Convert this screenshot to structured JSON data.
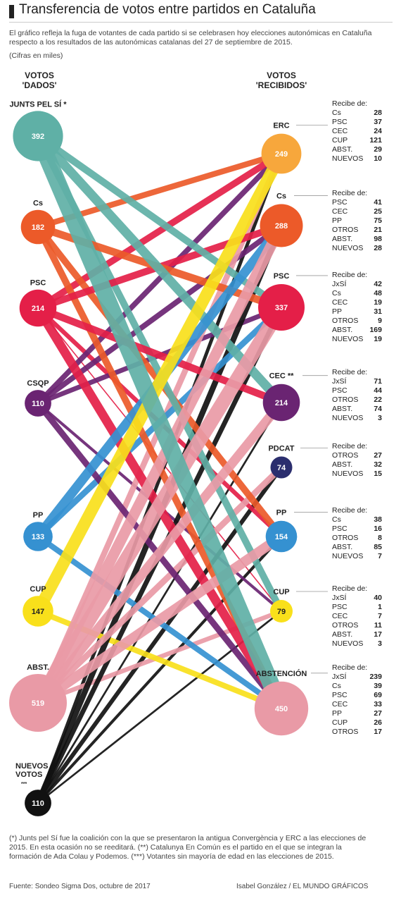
{
  "title": "Transferencia de votos entre partidos en Cataluña",
  "description": "El gráfico refleja la fuga de votantes de cada partido si se celebrasen hoy elecciones autonómicas en Cataluña respecto a los resultados de las autonómicas catalanas del 27 de septiembre de 2015.",
  "units": "(Cifras en miles)",
  "left_header": "VOTOS\n'DADOS'",
  "right_header": "VOTOS\n'RECIBIDOS'",
  "receive_label": "Recibe de:",
  "colors": {
    "jxsi": "#5fb0a6",
    "cs": "#ec5a29",
    "psc": "#e41f48",
    "csqp": "#6a2472",
    "pp": "#3591d1",
    "cup": "#f9e01b",
    "abst": "#e99aa6",
    "nuevos": "#111111",
    "erc": "#f7a73c",
    "pdcat": "#2b2e6e"
  },
  "chart_data": {
    "type": "flow",
    "units": "miles de votos",
    "sources": [
      {
        "name": "JUNTS PEL SÍ *",
        "value": 392,
        "color": "#5fb0a6"
      },
      {
        "name": "Cs",
        "value": 182,
        "color": "#ec5a29"
      },
      {
        "name": "PSC",
        "value": 214,
        "color": "#e41f48"
      },
      {
        "name": "CSQP",
        "value": 110,
        "color": "#6a2472"
      },
      {
        "name": "PP",
        "value": 133,
        "color": "#3591d1"
      },
      {
        "name": "CUP",
        "value": 147,
        "color": "#f9e01b"
      },
      {
        "name": "ABST.",
        "value": 519,
        "color": "#e99aa6"
      },
      {
        "name": "NUEVOS VOTOS ***",
        "value": 110,
        "color": "#111111"
      }
    ],
    "targets": [
      {
        "name": "ERC",
        "value": 249,
        "color": "#f7a73c",
        "receives": [
          [
            "Cs",
            28
          ],
          [
            "PSC",
            37
          ],
          [
            "CEC",
            24
          ],
          [
            "CUP",
            121
          ],
          [
            "ABST.",
            29
          ],
          [
            "NUEVOS",
            10
          ]
        ]
      },
      {
        "name": "Cs",
        "value": 288,
        "color": "#ec5a29",
        "receives": [
          [
            "PSC",
            41
          ],
          [
            "CEC",
            25
          ],
          [
            "PP",
            75
          ],
          [
            "OTROS",
            21
          ],
          [
            "ABST.",
            98
          ],
          [
            "NUEVOS",
            28
          ]
        ]
      },
      {
        "name": "PSC",
        "value": 337,
        "color": "#e41f48",
        "receives": [
          [
            "JxSÍ",
            42
          ],
          [
            "Cs",
            48
          ],
          [
            "CEC",
            19
          ],
          [
            "PP",
            31
          ],
          [
            "OTROS",
            9
          ],
          [
            "ABST.",
            169
          ],
          [
            "NUEVOS",
            19
          ]
        ]
      },
      {
        "name": "CEC **",
        "value": 214,
        "color": "#6a2472",
        "receives": [
          [
            "JxSÍ",
            71
          ],
          [
            "PSC",
            44
          ],
          [
            "OTROS",
            22
          ],
          [
            "ABST.",
            74
          ],
          [
            "NUEVOS",
            3
          ]
        ]
      },
      {
        "name": "PDCAT",
        "value": 74,
        "color": "#2b2e6e",
        "receives": [
          [
            "OTROS",
            27
          ],
          [
            "ABST.",
            32
          ],
          [
            "NUEVOS",
            15
          ]
        ]
      },
      {
        "name": "PP",
        "value": 154,
        "color": "#3591d1",
        "receives": [
          [
            "Cs",
            38
          ],
          [
            "PSC",
            16
          ],
          [
            "OTROS",
            8
          ],
          [
            "ABST.",
            85
          ],
          [
            "NUEVOS",
            7
          ]
        ]
      },
      {
        "name": "CUP",
        "value": 79,
        "color": "#f9e01b",
        "receives": [
          [
            "JxSÍ",
            40
          ],
          [
            "PSC",
            1
          ],
          [
            "CEC",
            7
          ],
          [
            "OTROS",
            11
          ],
          [
            "ABST.",
            17
          ],
          [
            "NUEVOS",
            3
          ]
        ]
      },
      {
        "name": "ABSTENCIÓN",
        "value": 450,
        "color": "#e99aa6",
        "receives": [
          [
            "JxSÍ",
            239
          ],
          [
            "Cs",
            39
          ],
          [
            "PSC",
            69
          ],
          [
            "CEC",
            33
          ],
          [
            "PP",
            27
          ],
          [
            "CUP",
            26
          ],
          [
            "OTROS",
            17
          ]
        ]
      }
    ]
  },
  "footnote": "(*) Junts pel Sí fue la coalición con la que se presentaron la antigua Convergència y ERC a las elecciones de 2015. En esta ocasión no se reeditará. (**) Catalunya En Común es el partido en el que se integran la formación de Ada Colau y Podemos. (***) Votantes sin mayoría de edad en las elecciones de 2015.",
  "source": "Fuente: Sondeo Sigma Dos, octubre de 2017",
  "credit": "Isabel González / EL MUNDO GRÁFICOS"
}
